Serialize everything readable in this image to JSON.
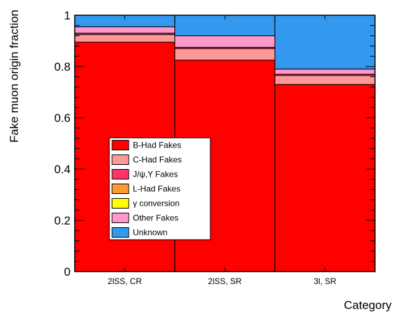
{
  "chart_data": {
    "type": "bar",
    "stacked": true,
    "title": "",
    "xlabel": "Category",
    "ylabel": "Fake muon origin fraction",
    "ylim": [
      0,
      1
    ],
    "yticks": [
      "0",
      "0.2",
      "0.4",
      "0.6",
      "0.8",
      "1"
    ],
    "categories": [
      "2lSS, CR",
      "2lSS, SR",
      "3l, SR"
    ],
    "series": [
      {
        "name": "B-Had Fakes",
        "color": "#ff0000",
        "values": [
          0.895,
          0.825,
          0.73
        ]
      },
      {
        "name": "C-Had Fakes",
        "color": "#ff9999",
        "values": [
          0.03,
          0.045,
          0.035
        ]
      },
      {
        "name": "J/ψ,Υ Fakes",
        "color": "#ff3366",
        "values": [
          0.005,
          0.005,
          0.005
        ]
      },
      {
        "name": "L-Had Fakes",
        "color": "#ff9933",
        "values": [
          0.0,
          0.0,
          0.0
        ]
      },
      {
        "name": "γ conversion",
        "color": "#ffff00",
        "values": [
          0.0,
          0.0,
          0.0
        ]
      },
      {
        "name": "Other Fakes",
        "color": "#ff99cc",
        "values": [
          0.025,
          0.045,
          0.02
        ]
      },
      {
        "name": "Unknown",
        "color": "#3399ee",
        "values": [
          0.045,
          0.08,
          0.21
        ]
      }
    ],
    "legend_position": "lower-left",
    "grid": false
  }
}
